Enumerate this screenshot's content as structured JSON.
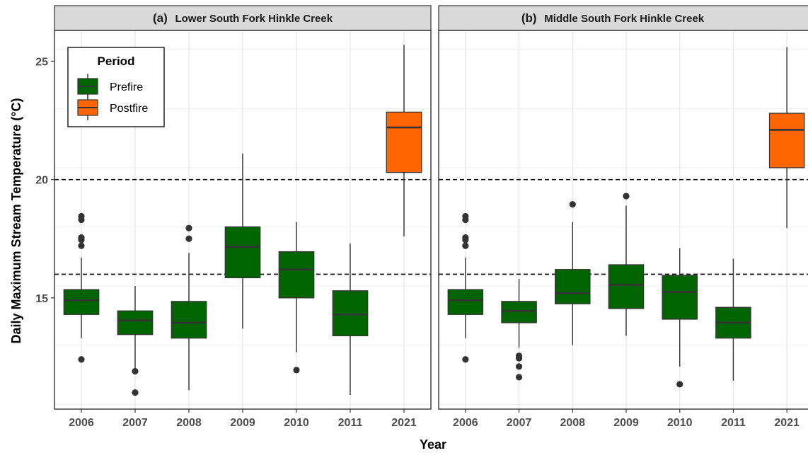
{
  "chart_data": {
    "type": "box",
    "xlabel": "Year",
    "ylabel": "Daily Maximum Stream Temperature (°C)",
    "categories": [
      "2006",
      "2007",
      "2008",
      "2009",
      "2010",
      "2011",
      "2021"
    ],
    "yticks": [
      15,
      20,
      25
    ],
    "ylim": [
      10.3,
      26.3
    ],
    "reference_lines": [
      16,
      20
    ],
    "legend": {
      "title": "Period",
      "position": "top-left",
      "entries": [
        {
          "label": "Prefire",
          "color": "#006400"
        },
        {
          "label": "Postfire",
          "color": "#ff6600"
        }
      ]
    },
    "panels": [
      {
        "title_letter": "(a)",
        "title_text": "Lower South Fork Hinkle Creek",
        "boxes": [
          {
            "x": "2006",
            "period": "Prefire",
            "q1": 14.3,
            "median": 14.9,
            "q3": 15.35,
            "low": 13.3,
            "high": 16.7,
            "outliers": [
              12.4,
              17.2,
              17.45,
              17.55,
              18.3,
              18.45
            ]
          },
          {
            "x": "2007",
            "period": "Prefire",
            "q1": 13.45,
            "median": 14.05,
            "q3": 14.45,
            "low": 12.0,
            "high": 15.5,
            "outliers": [
              11.9,
              11.0
            ]
          },
          {
            "x": "2008",
            "period": "Prefire",
            "q1": 13.3,
            "median": 13.95,
            "q3": 14.85,
            "low": 11.1,
            "high": 16.9,
            "outliers": [
              17.5,
              17.95
            ]
          },
          {
            "x": "2009",
            "period": "Prefire",
            "q1": 15.85,
            "median": 17.15,
            "q3": 18.0,
            "low": 13.7,
            "high": 21.1,
            "outliers": []
          },
          {
            "x": "2010",
            "period": "Prefire",
            "q1": 15.0,
            "median": 16.2,
            "q3": 16.95,
            "low": 12.7,
            "high": 18.2,
            "outliers": [
              11.95
            ]
          },
          {
            "x": "2011",
            "period": "Prefire",
            "q1": 13.4,
            "median": 14.3,
            "q3": 15.3,
            "low": 10.9,
            "high": 17.3,
            "outliers": []
          },
          {
            "x": "2021",
            "period": "Postfire",
            "q1": 20.3,
            "median": 22.2,
            "q3": 22.85,
            "low": 17.6,
            "high": 25.7,
            "outliers": []
          }
        ]
      },
      {
        "title_letter": "(b)",
        "title_text": "Middle South Fork Hinkle Creek",
        "boxes": [
          {
            "x": "2006",
            "period": "Prefire",
            "q1": 14.3,
            "median": 14.9,
            "q3": 15.35,
            "low": 13.3,
            "high": 16.7,
            "outliers": [
              12.4,
              17.2,
              17.45,
              17.55,
              18.3,
              18.45
            ]
          },
          {
            "x": "2007",
            "period": "Prefire",
            "q1": 13.95,
            "median": 14.45,
            "q3": 14.85,
            "low": 12.9,
            "high": 15.8,
            "outliers": [
              12.55,
              12.45,
              12.1,
              11.65
            ]
          },
          {
            "x": "2008",
            "period": "Prefire",
            "q1": 14.75,
            "median": 15.2,
            "q3": 16.2,
            "low": 13.0,
            "high": 18.2,
            "outliers": [
              18.95
            ]
          },
          {
            "x": "2009",
            "period": "Prefire",
            "q1": 14.55,
            "median": 15.55,
            "q3": 16.4,
            "low": 13.4,
            "high": 18.9,
            "outliers": [
              19.3
            ]
          },
          {
            "x": "2010",
            "period": "Prefire",
            "q1": 14.1,
            "median": 15.25,
            "q3": 15.95,
            "low": 12.1,
            "high": 17.1,
            "outliers": [
              11.35
            ]
          },
          {
            "x": "2011",
            "period": "Prefire",
            "q1": 13.3,
            "median": 13.95,
            "q3": 14.6,
            "low": 11.5,
            "high": 16.65,
            "outliers": []
          },
          {
            "x": "2021",
            "period": "Postfire",
            "q1": 20.5,
            "median": 22.1,
            "q3": 22.8,
            "low": 17.95,
            "high": 25.6,
            "outliers": []
          }
        ]
      }
    ]
  }
}
